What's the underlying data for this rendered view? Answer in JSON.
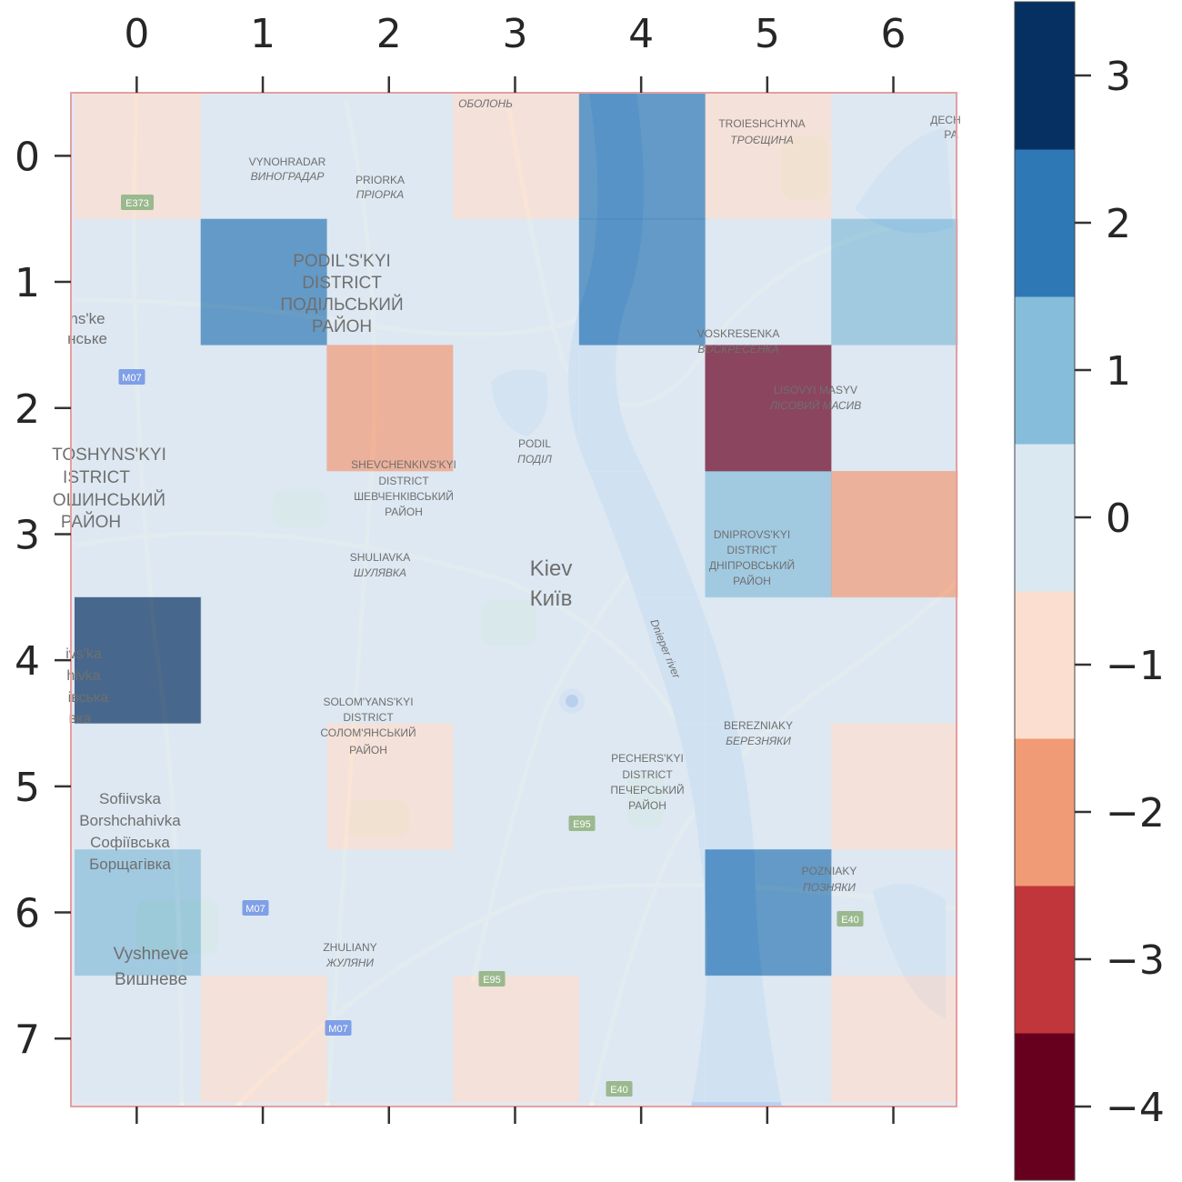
{
  "chart_data": {
    "type": "heatmap",
    "title": "",
    "xlabel": "",
    "ylabel": "",
    "x_ticks": [
      "0",
      "1",
      "2",
      "3",
      "4",
      "5",
      "6"
    ],
    "y_ticks": [
      "0",
      "1",
      "2",
      "3",
      "4",
      "5",
      "6",
      "7"
    ],
    "x_tick_position": "top",
    "grid": false,
    "colormap": "RdBu (discrete, 8 levels)",
    "values": [
      [
        -1,
        0,
        0,
        -1,
        2,
        -1,
        0
      ],
      [
        0,
        2,
        0,
        0,
        2,
        0,
        1
      ],
      [
        0,
        0,
        -2,
        0,
        0,
        -4,
        0
      ],
      [
        0,
        0,
        0,
        0,
        0,
        1,
        -2
      ],
      [
        3,
        0,
        0,
        0,
        0,
        0,
        0
      ],
      [
        0,
        0,
        -1,
        0,
        0,
        0,
        -1
      ],
      [
        1,
        0,
        0,
        0,
        0,
        2,
        0
      ],
      [
        0,
        -1,
        0,
        -1,
        0,
        0,
        -1
      ]
    ],
    "colorbar": {
      "range": [
        -4.5,
        3.5
      ],
      "ticks": [
        3,
        2,
        1,
        0,
        -1,
        -2,
        -3,
        -4
      ],
      "tick_labels": [
        "3",
        "2",
        "1",
        "0",
        "−1",
        "−2",
        "−3",
        "−4"
      ],
      "colors": [
        "#67001f",
        "#c0363b",
        "#f09a76",
        "#fbdecf",
        "#dae8f2",
        "#85bdda",
        "#2e79b5",
        "#053061"
      ]
    },
    "background": "street map of Kiev",
    "map_labels": [
      {
        "text": "ОБОЛОНЬ"
      },
      {
        "text": "VYNOHRADAR"
      },
      {
        "text": "ВИНОГРАДАР"
      },
      {
        "text": "PRIORKA"
      },
      {
        "text": "ПРІОРКА"
      },
      {
        "text": "TROIESHCHYNA"
      },
      {
        "text": "ТРОЄЩИНА"
      },
      {
        "text": "ДЕСН"
      },
      {
        "text": "РА"
      },
      {
        "text": "E373"
      },
      {
        "text": "PODIL'S'KYI"
      },
      {
        "text": "DISTRICT"
      },
      {
        "text": "ПОДІЛЬСЬКИЙ"
      },
      {
        "text": "РАЙОН"
      },
      {
        "text": "ns'ke"
      },
      {
        "text": "нське"
      },
      {
        "text": "M07"
      },
      {
        "text": "VOSKRESENKA"
      },
      {
        "text": "ВОСКРЕСЕНКА"
      },
      {
        "text": "LISOVYI MASYV"
      },
      {
        "text": "ЛІСОВИЙ МАСИВ"
      },
      {
        "text": "PODIL"
      },
      {
        "text": "ПОДІЛ"
      },
      {
        "text": "TOSHYNS'KYI"
      },
      {
        "text": "ISTRICT"
      },
      {
        "text": "ОШИНСЬКИЙ"
      },
      {
        "text": "РАЙОН"
      },
      {
        "text": "SHEVCHENKIVS'KYI"
      },
      {
        "text": "DISTRICT"
      },
      {
        "text": "ШЕВЧЕНКІВСЬКИЙ"
      },
      {
        "text": "РАЙОН"
      },
      {
        "text": "DNIPROVS'KYI"
      },
      {
        "text": "DISTRICT"
      },
      {
        "text": "ДНІПРОВСЬКИЙ"
      },
      {
        "text": "РАЙОН"
      },
      {
        "text": "SHULIAVKA"
      },
      {
        "text": "ШУЛЯВКА"
      },
      {
        "text": "Kiev"
      },
      {
        "text": "Київ"
      },
      {
        "text": "Dnieper river"
      },
      {
        "text": "ivs'ka"
      },
      {
        "text": "hivka"
      },
      {
        "text": "івська"
      },
      {
        "text": "вка"
      },
      {
        "text": "SOLOM'YANS'KYI"
      },
      {
        "text": "DISTRICT"
      },
      {
        "text": "СОЛОМ'ЯНСЬКИЙ"
      },
      {
        "text": "РАЙОН"
      },
      {
        "text": "BEREZNIAKY"
      },
      {
        "text": "БЕРЕЗНЯКИ"
      },
      {
        "text": "PECHERS'KYI"
      },
      {
        "text": "DISTRICT"
      },
      {
        "text": "ПЕЧЕРСЬКИЙ"
      },
      {
        "text": "РАЙОН"
      },
      {
        "text": "Sofiivska"
      },
      {
        "text": "Borshchahivka"
      },
      {
        "text": "Софіївська"
      },
      {
        "text": "Борщагівка"
      },
      {
        "text": "E95"
      },
      {
        "text": "POZNIAKY"
      },
      {
        "text": "ПОЗНЯКИ"
      },
      {
        "text": "E40"
      },
      {
        "text": "M07"
      },
      {
        "text": "Vyshneve"
      },
      {
        "text": "Вишневе"
      },
      {
        "text": "ZHULIANY"
      },
      {
        "text": "ЖУЛЯНИ"
      },
      {
        "text": "E95"
      },
      {
        "text": "M07"
      },
      {
        "text": "E40"
      }
    ]
  }
}
